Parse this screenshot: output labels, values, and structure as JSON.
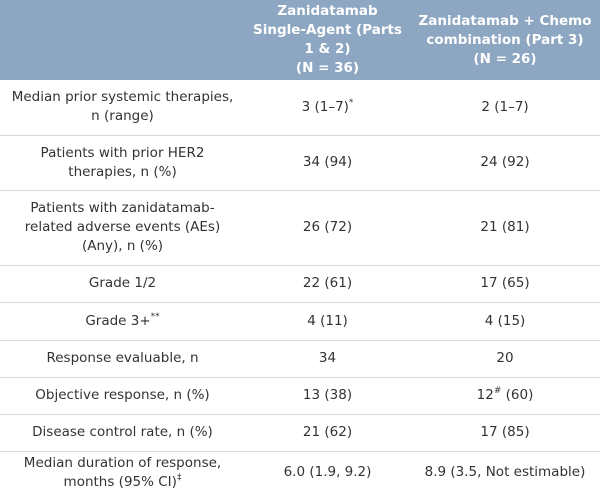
{
  "table": {
    "header": [
      {
        "title": "Zanidatamab Single-Agent (Parts 1 & 2)",
        "n": "(N = 36)"
      },
      {
        "title": "Zanidatamab + Chemo combination (Part 3)",
        "n": "(N = 26)"
      }
    ],
    "rows": [
      [
        {
          "text": "Median prior systemic therapies, n (range)"
        },
        {
          "text": "3 (1–7)",
          "sup": "*"
        },
        {
          "text": "2 (1–7)"
        }
      ],
      [
        {
          "text": "Patients with prior HER2 therapies, n (%)"
        },
        {
          "text": "34 (94)"
        },
        {
          "text": "24 (92)"
        }
      ],
      [
        {
          "text": "Patients with zanidatamab-related adverse events (AEs) (Any), n (%)"
        },
        {
          "text": "26 (72)"
        },
        {
          "text": "21 (81)"
        }
      ],
      [
        {
          "text": "Grade 1/2"
        },
        {
          "text": "22 (61)"
        },
        {
          "text": "17 (65)"
        }
      ],
      [
        {
          "text": "Grade 3+",
          "sup": "**"
        },
        {
          "text": "4 (11)"
        },
        {
          "text": "4 (15)"
        }
      ],
      [
        {
          "text": "Response evaluable, n"
        },
        {
          "text": "34"
        },
        {
          "text": "20"
        }
      ],
      [
        {
          "text": "Objective response, n (%)"
        },
        {
          "text": "13 (38)"
        },
        {
          "text": "12",
          "sup": "#",
          "rest": " (60)"
        }
      ],
      [
        {
          "text": "Disease control rate, n (%)"
        },
        {
          "text": "21 (62)"
        },
        {
          "text": "17 (85)"
        }
      ],
      [
        {
          "text": "Median duration of response, months (95% CI)",
          "sup": "‡"
        },
        {
          "text": "6.0 (1.9, 9.2)"
        },
        {
          "text": "8.9 (3.5, Not estimable)"
        }
      ]
    ]
  }
}
